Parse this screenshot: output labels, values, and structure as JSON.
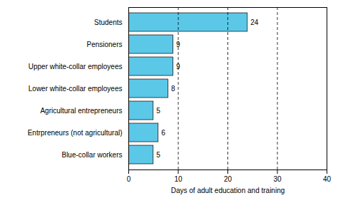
{
  "chart_data": {
    "type": "bar",
    "orientation": "horizontal",
    "categories": [
      "Blue-collar workers",
      "Entrpreneurs (not agricultural)",
      "Agricultural entrepreneurs",
      "Lower white-collar employees",
      "Upper white-collar employees",
      "Pensioners",
      "Students"
    ],
    "values": [
      5,
      6,
      5,
      8,
      9,
      9,
      24
    ],
    "color": "#5BC8E8",
    "xlim": [
      0,
      40
    ],
    "xticks": [
      0,
      10,
      20,
      30,
      40
    ],
    "xlabel": "Days of adult education and training",
    "grid": true,
    "data_labels": true
  }
}
